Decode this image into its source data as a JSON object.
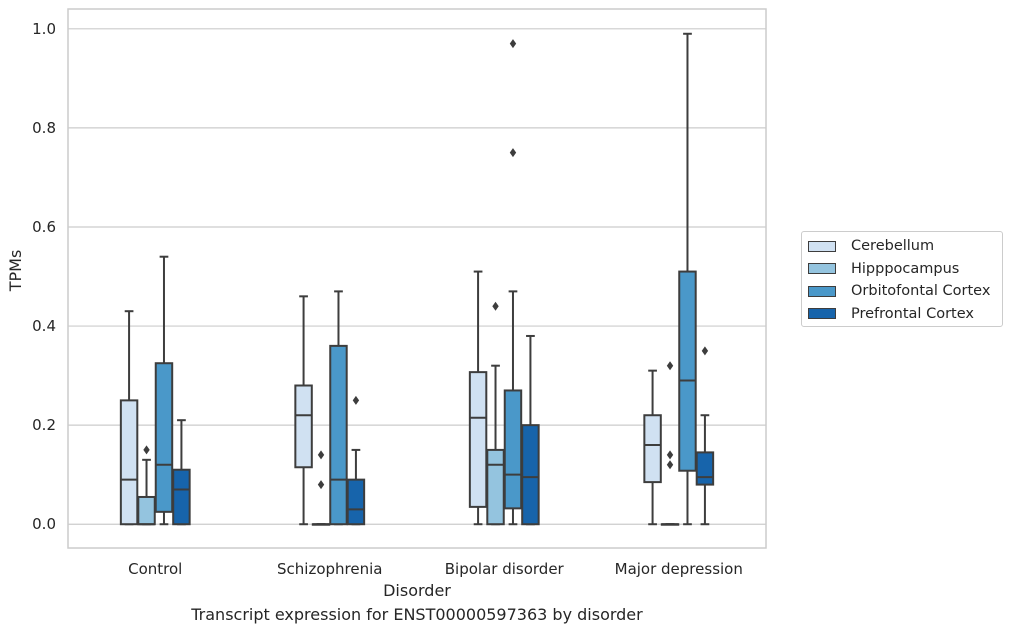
{
  "chart_data": {
    "type": "box",
    "title": "",
    "caption": "Transcript expression for ENST00000597363 by disorder",
    "xlabel": "Disorder",
    "ylabel": "TPMs",
    "ylim": [
      -0.048,
      1.04
    ],
    "yticks": [
      "0.0",
      "0.2",
      "0.4",
      "0.6",
      "0.8",
      "1.0"
    ],
    "categories": [
      "Control",
      "Schizophrenia",
      "Bipolar disorder",
      "Major depression"
    ],
    "grid": "horizontal",
    "legend_position": "right",
    "series": [
      {
        "name": "Cerebellum",
        "color": "#d0e1f2",
        "boxes": [
          {
            "whislo": 0.0,
            "q1": 0.0,
            "med": 0.09,
            "q3": 0.25,
            "whishi": 0.43,
            "fliers": []
          },
          {
            "whislo": 0.0,
            "q1": 0.115,
            "med": 0.22,
            "q3": 0.28,
            "whishi": 0.46,
            "fliers": []
          },
          {
            "whislo": 0.0,
            "q1": 0.035,
            "med": 0.215,
            "q3": 0.307,
            "whishi": 0.51,
            "fliers": []
          },
          {
            "whislo": 0.0,
            "q1": 0.085,
            "med": 0.16,
            "q3": 0.22,
            "whishi": 0.31,
            "fliers": []
          }
        ]
      },
      {
        "name": "Hipppocampus",
        "color": "#94c4df",
        "boxes": [
          {
            "whislo": 0.0,
            "q1": 0.0,
            "med": 0.0,
            "q3": 0.055,
            "whishi": 0.13,
            "fliers": [
              0.15
            ]
          },
          {
            "whislo": 0.0,
            "q1": 0.0,
            "med": 0.0,
            "q3": 0.0,
            "whishi": 0.0,
            "fliers": [
              0.14,
              0.08
            ]
          },
          {
            "whislo": 0.0,
            "q1": 0.0,
            "med": 0.12,
            "q3": 0.15,
            "whishi": 0.32,
            "fliers": [
              0.44
            ]
          },
          {
            "whislo": 0.0,
            "q1": 0.0,
            "med": 0.0,
            "q3": 0.0,
            "whishi": 0.0,
            "fliers": [
              0.32,
              0.14,
              0.12
            ]
          }
        ]
      },
      {
        "name": "Orbitofontal Cortex",
        "color": "#4a98c9",
        "boxes": [
          {
            "whislo": 0.0,
            "q1": 0.025,
            "med": 0.12,
            "q3": 0.325,
            "whishi": 0.54,
            "fliers": []
          },
          {
            "whislo": 0.0,
            "q1": 0.0,
            "med": 0.09,
            "q3": 0.36,
            "whishi": 0.47,
            "fliers": []
          },
          {
            "whislo": 0.0,
            "q1": 0.032,
            "med": 0.1,
            "q3": 0.27,
            "whishi": 0.47,
            "fliers": [
              0.97,
              0.75
            ]
          },
          {
            "whislo": 0.0,
            "q1": 0.108,
            "med": 0.29,
            "q3": 0.51,
            "whishi": 0.99,
            "fliers": []
          }
        ]
      },
      {
        "name": "Prefrontal Cortex",
        "color": "#1764ab",
        "boxes": [
          {
            "whislo": 0.0,
            "q1": 0.0,
            "med": 0.07,
            "q3": 0.11,
            "whishi": 0.21,
            "fliers": []
          },
          {
            "whislo": 0.0,
            "q1": 0.0,
            "med": 0.03,
            "q3": 0.09,
            "whishi": 0.15,
            "fliers": [
              0.25
            ]
          },
          {
            "whislo": 0.0,
            "q1": 0.0,
            "med": 0.095,
            "q3": 0.2,
            "whishi": 0.38,
            "fliers": []
          },
          {
            "whislo": 0.0,
            "q1": 0.08,
            "med": 0.095,
            "q3": 0.145,
            "whishi": 0.22,
            "fliers": [
              0.35
            ]
          }
        ]
      }
    ]
  }
}
